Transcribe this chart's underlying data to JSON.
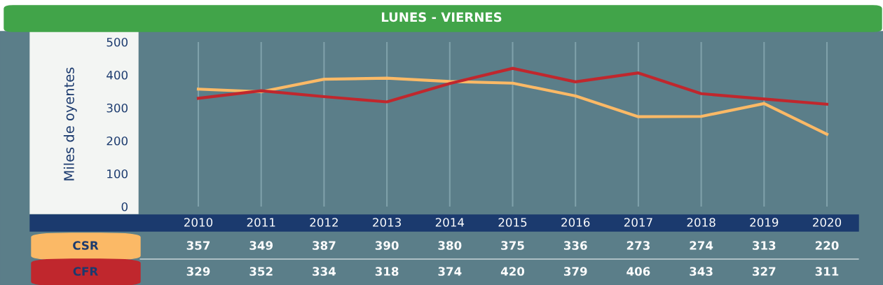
{
  "chart_data": {
    "type": "line",
    "title": "LUNES - VIERNES",
    "ylabel": "Miles de oyentes",
    "categories": [
      "2010",
      "2011",
      "2012",
      "2013",
      "2014",
      "2015",
      "2016",
      "2017",
      "2018",
      "2019",
      "2020"
    ],
    "series": [
      {
        "name": "CSR",
        "color": "#fbb966",
        "values": [
          357,
          349,
          387,
          390,
          380,
          375,
          336,
          273,
          274,
          313,
          220
        ]
      },
      {
        "name": "CFR",
        "color": "#c0272d",
        "values": [
          329,
          352,
          334,
          318,
          374,
          420,
          379,
          406,
          343,
          327,
          311
        ]
      }
    ],
    "ylim": [
      0,
      500
    ],
    "yticks": [
      0,
      100,
      200,
      300,
      400,
      500
    ],
    "grid": "x",
    "data_labels": true,
    "legend": false,
    "marker": "none",
    "line_style": "solid"
  }
}
